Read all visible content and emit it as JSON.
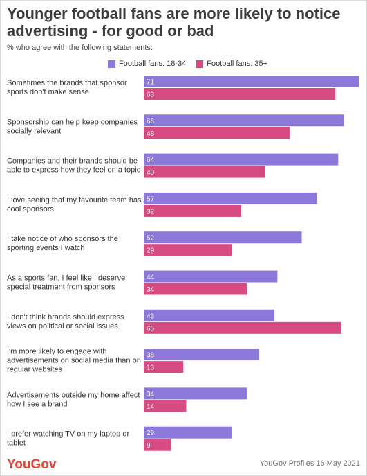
{
  "title": "Younger football fans are more likely to notice advertising - for good or bad",
  "subtitle": "% who agree with the following statements:",
  "brand": "YouGov",
  "source": "YouGov Profiles 16 May 2021",
  "colors": {
    "series_1": "#8c78d8",
    "series_2": "#d64c82"
  },
  "chart_data": {
    "type": "bar",
    "orientation": "horizontal",
    "categories": [
      "Sometimes the brands that sponsor sports don't make sense",
      "Sponsorship can help keep companies socially relevant",
      "Companies and their brands should be able to express how they feel on a topic",
      "I love seeing that my favourite team has cool sponsors",
      "I take notice of who sponsors the sporting events I watch",
      "As a sports fan, I feel like I deserve special treatment from sponsors",
      "I don't think brands should express views on political or social issues",
      "I'm more likely to engage with advertisements on social media than on regular websites",
      "Advertisements outside my home affect how I see a brand",
      "I prefer watching TV on my laptop or tablet"
    ],
    "series": [
      {
        "name": "Football fans: 18-34",
        "values": [
          71,
          66,
          64,
          57,
          52,
          44,
          43,
          38,
          34,
          29
        ]
      },
      {
        "name": "Football fans: 35+",
        "values": [
          63,
          48,
          40,
          32,
          29,
          34,
          65,
          13,
          14,
          9
        ]
      }
    ],
    "xlim": [
      0,
      71
    ],
    "grid": false,
    "legend_position": "top",
    "data_labels": true
  }
}
